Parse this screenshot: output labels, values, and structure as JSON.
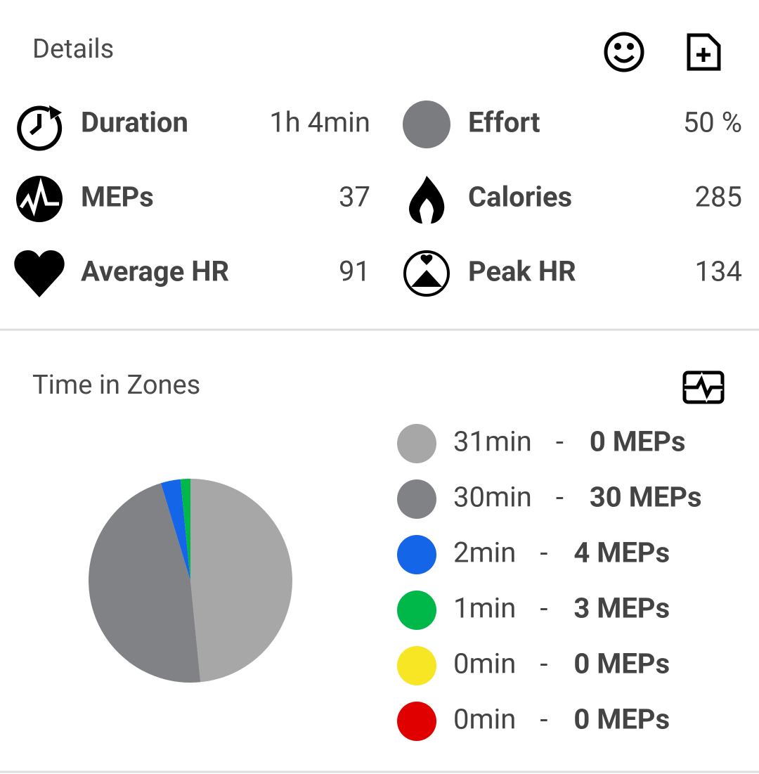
{
  "header": {
    "title": "Details"
  },
  "stats": [
    {
      "label": "Duration",
      "value": "1h 4min"
    },
    {
      "label": "Effort",
      "value": "50 %"
    },
    {
      "label": "MEPs",
      "value": "37"
    },
    {
      "label": "Calories",
      "value": "285"
    },
    {
      "label": "Average HR",
      "value": "91"
    },
    {
      "label": "Peak HR",
      "value": "134"
    }
  ],
  "chart_data": {
    "type": "pie",
    "title": "Time in Zones",
    "values": [
      31,
      30,
      2,
      1,
      0,
      0
    ],
    "value_labels": [
      "31min",
      "30min",
      "2min",
      "1min",
      "0min",
      "0min"
    ],
    "colors": [
      "#a7a7a7",
      "#818286",
      "#1565e8",
      "#00b84a",
      "#f7e623",
      "#e00000"
    ],
    "meps_labels": [
      "0 MEPs",
      "30 MEPs",
      "4 MEPs",
      "3 MEPs",
      "0 MEPs",
      "0 MEPs"
    ],
    "separator": "-"
  }
}
